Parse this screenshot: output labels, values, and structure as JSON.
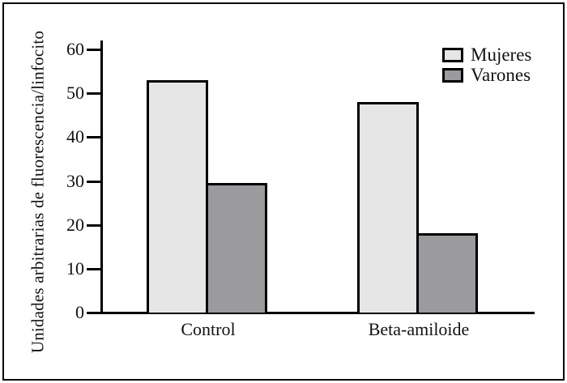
{
  "chart_data": {
    "type": "bar",
    "categories": [
      "Control",
      "Beta-amiloide"
    ],
    "series": [
      {
        "name": "Mujeres",
        "color": "#e6e6e6",
        "values": [
          53,
          48
        ]
      },
      {
        "name": "Varones",
        "color": "#9b9b9d",
        "values": [
          29.5,
          18
        ]
      }
    ],
    "title": "",
    "xlabel": "",
    "ylabel": "Unidades arbitrarias de fluorescencia/linfocito",
    "ylim": [
      0,
      60
    ],
    "yticks": [
      0,
      10,
      20,
      30,
      40,
      50,
      60
    ],
    "grid": false,
    "legend_position": "top-right",
    "axis_color": "#000000",
    "bar_border_color": "#000000",
    "background_color": "#ffffff",
    "frame_border_color": "#000000"
  }
}
